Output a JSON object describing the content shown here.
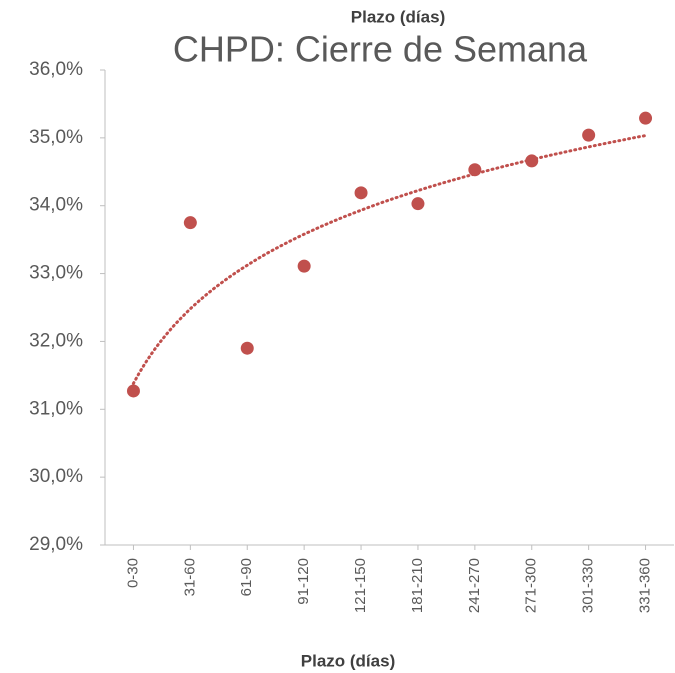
{
  "chart_data": {
    "type": "scatter",
    "title": "CHPD: Cierre de Semana",
    "x_label": "Plazo (días)",
    "categories": [
      "0-30",
      "31-60",
      "61-90",
      "91-120",
      "121-150",
      "181-210",
      "241-270",
      "271-300",
      "301-330",
      "331-360"
    ],
    "values": [
      31.27,
      33.75,
      31.9,
      33.11,
      34.19,
      34.03,
      34.53,
      34.66,
      35.04,
      35.29
    ],
    "color": "#c0504d",
    "trendline": "logarithmic",
    "ylim": [
      29,
      36
    ],
    "yticks": [
      {
        "value": 29,
        "label": "29,0%"
      },
      {
        "value": 30,
        "label": "30,0%"
      },
      {
        "value": 31,
        "label": "31,0%"
      },
      {
        "value": 32,
        "label": "32,0%"
      },
      {
        "value": 33,
        "label": "33,0%"
      },
      {
        "value": 34,
        "label": "34,0%"
      },
      {
        "value": 35,
        "label": "35,0%"
      },
      {
        "value": 36,
        "label": "36,0%"
      }
    ],
    "grid": false
  }
}
